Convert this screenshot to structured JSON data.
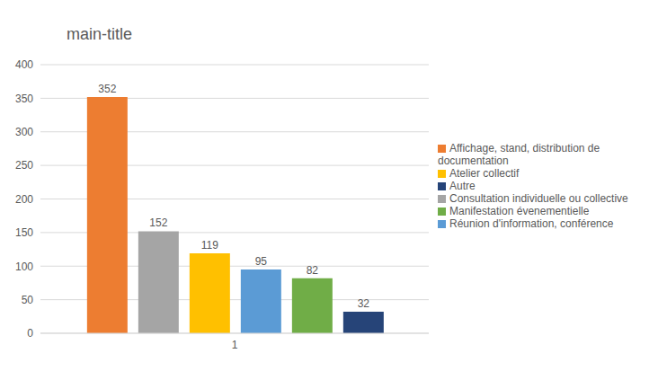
{
  "chart_data": {
    "type": "bar",
    "title": "main-title",
    "categories": [
      "1"
    ],
    "series": [
      {
        "name": "Affichage, stand, distribution de documentation",
        "color": "#ED7D31",
        "values": [
          352
        ]
      },
      {
        "name": "Consultation individuelle ou collective",
        "color": "#A5A5A5",
        "values": [
          152
        ]
      },
      {
        "name": "Atelier collectif",
        "color": "#FFC000",
        "values": [
          119
        ]
      },
      {
        "name": "Réunion d'information, conférence",
        "color": "#5B9BD5",
        "values": [
          95
        ]
      },
      {
        "name": "Manifestation évenementielle",
        "color": "#70AD47",
        "values": [
          82
        ]
      },
      {
        "name": "Autre",
        "color": "#264478",
        "values": [
          32
        ]
      }
    ],
    "ylim": [
      0,
      400
    ],
    "yticks": [
      0,
      50,
      100,
      150,
      200,
      250,
      300,
      350,
      400
    ],
    "grid": true,
    "legend": "right",
    "data_labels": true
  }
}
